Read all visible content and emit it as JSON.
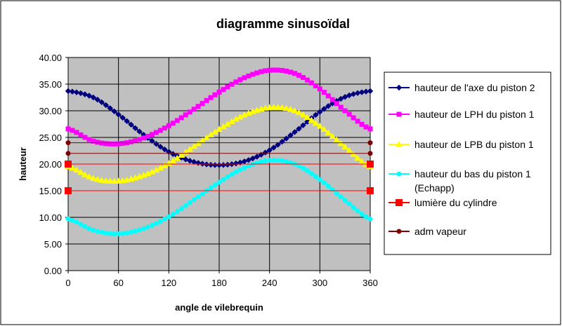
{
  "chart_data": {
    "type": "line",
    "title": "diagramme sinusoïdal",
    "xlabel": "angle de vilebrequin",
    "ylabel": "hauteur",
    "xlim": [
      0,
      360
    ],
    "ylim": [
      0,
      40
    ],
    "x_ticks": [
      "0",
      "60",
      "120",
      "180",
      "240",
      "300",
      "360"
    ],
    "y_ticks": [
      "0.00",
      "5.00",
      "10.00",
      "15.00",
      "20.00",
      "25.00",
      "30.00",
      "35.00",
      "40.00"
    ],
    "grid": true,
    "legend_position": "right",
    "plot_background": "#c0c0c0",
    "series": [
      {
        "name": "hauteur de l'axe du piston 2",
        "color": "#000080",
        "marker": "diamond",
        "x": [
          0,
          30,
          60,
          90,
          120,
          150,
          180,
          210,
          240,
          270,
          300,
          330,
          360
        ],
        "y": [
          33.7,
          32.5,
          29.3,
          25.5,
          22.3,
          20.4,
          19.8,
          20.5,
          22.6,
          26.0,
          29.8,
          32.6,
          33.7
        ]
      },
      {
        "name": "hauteur de LPH du piston 1",
        "color": "#ff00ff",
        "marker": "square",
        "x": [
          0,
          30,
          60,
          90,
          120,
          150,
          180,
          210,
          240,
          270,
          300,
          330,
          360
        ],
        "y": [
          26.6,
          24.3,
          23.8,
          24.9,
          27.2,
          30.3,
          33.5,
          36.2,
          37.6,
          37.0,
          34.1,
          30.0,
          26.6
        ]
      },
      {
        "name": "hauteur de LPB du piston 1",
        "color": "#ffff00",
        "marker": "triangle",
        "x": [
          0,
          30,
          60,
          90,
          120,
          150,
          180,
          210,
          240,
          270,
          300,
          330,
          360
        ],
        "y": [
          19.5,
          17.3,
          16.8,
          17.9,
          20.1,
          23.3,
          26.5,
          29.2,
          30.6,
          30.0,
          27.1,
          23.2,
          19.5
        ]
      },
      {
        "name": "hauteur du bas du piston 1 (Echapp)",
        "color": "#00ffff",
        "marker": "circle",
        "x": [
          0,
          30,
          60,
          90,
          120,
          150,
          180,
          210,
          240,
          270,
          300,
          330,
          360
        ],
        "y": [
          9.7,
          7.6,
          6.9,
          7.9,
          10.1,
          13.3,
          16.6,
          19.3,
          20.7,
          20.0,
          17.1,
          13.2,
          9.7
        ]
      },
      {
        "name": "lumière du cylindre",
        "color": "#ff0000",
        "marker": "bigsquare",
        "lines": [
          {
            "x": [
              0,
              360
            ],
            "y": [
              15,
              15
            ]
          },
          {
            "x": [
              0,
              360
            ],
            "y": [
              20,
              20
            ]
          }
        ]
      },
      {
        "name": "adm vapeur",
        "color": "#800000",
        "marker": "dot",
        "lines": [
          {
            "x": [
              0,
              360
            ],
            "y": [
              22,
              22
            ]
          },
          {
            "x": [
              0,
              360
            ],
            "y": [
              24,
              24
            ]
          }
        ]
      }
    ]
  }
}
